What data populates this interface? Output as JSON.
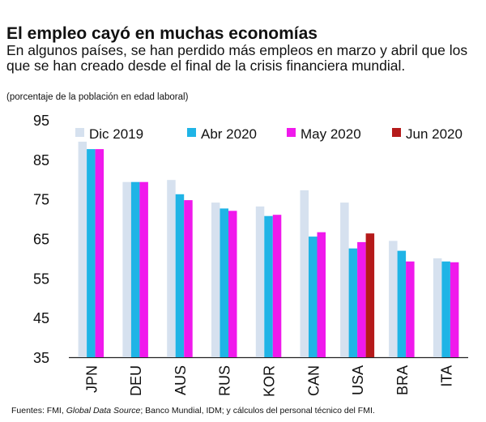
{
  "title": "El empleo cayó en muchas economías",
  "subtitle": "En algunos países, se han perdido más empleos en marzo y abril que los que se han creado desde el final de la crisis financiera mundial.",
  "note": "(porcentaje de la población en edad laboral)",
  "footer": {
    "prefix": "Fuentes: FMI, ",
    "italic": "Global Data Source",
    "suffix": "; Banco Mundial, IDM; y cálculos del personal técnico del FMI."
  },
  "chart_data": {
    "type": "bar",
    "categories": [
      "JPN",
      "DEU",
      "AUS",
      "RUS",
      "KOR",
      "CAN",
      "USA",
      "BRA",
      "ITA"
    ],
    "ylim": [
      35,
      95
    ],
    "yticks": [
      35,
      45,
      55,
      65,
      75,
      85,
      95
    ],
    "grid": false,
    "legend_position": "top",
    "series": [
      {
        "name": "Dic 2019",
        "color": "#d6e1ef",
        "values": [
          89.5,
          79.3,
          79.8,
          74.1,
          73.1,
          77.2,
          74.1,
          64.4,
          60.0
        ]
      },
      {
        "name": "Abr 2020",
        "color": "#1fb4e6",
        "values": [
          87.6,
          79.3,
          76.2,
          72.6,
          70.7,
          65.5,
          62.5,
          61.9,
          59.2
        ]
      },
      {
        "name": "May 2020",
        "color": "#f019ec",
        "values": [
          87.6,
          79.3,
          74.7,
          72.0,
          71.0,
          66.6,
          64.1,
          59.2,
          59.0
        ]
      },
      {
        "name": "Jun 2020",
        "color": "#b51a1a",
        "values": [
          null,
          null,
          null,
          null,
          null,
          null,
          66.3,
          null,
          null
        ]
      }
    ]
  }
}
